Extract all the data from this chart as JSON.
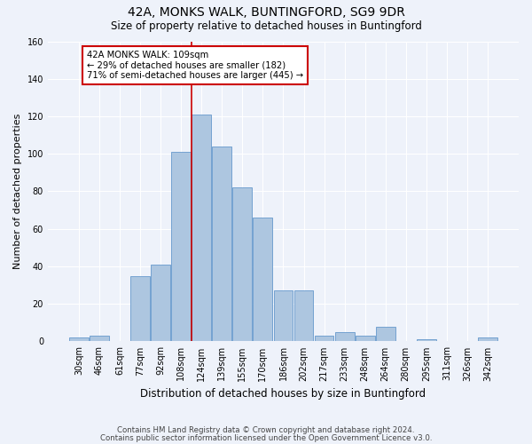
{
  "title1": "42A, MONKS WALK, BUNTINGFORD, SG9 9DR",
  "title2": "Size of property relative to detached houses in Buntingford",
  "xlabel": "Distribution of detached houses by size in Buntingford",
  "ylabel": "Number of detached properties",
  "categories": [
    "30sqm",
    "46sqm",
    "61sqm",
    "77sqm",
    "92sqm",
    "108sqm",
    "124sqm",
    "139sqm",
    "155sqm",
    "170sqm",
    "186sqm",
    "202sqm",
    "217sqm",
    "233sqm",
    "248sqm",
    "264sqm",
    "280sqm",
    "295sqm",
    "311sqm",
    "326sqm",
    "342sqm"
  ],
  "values": [
    2,
    3,
    0,
    35,
    41,
    101,
    121,
    104,
    82,
    66,
    27,
    27,
    3,
    5,
    3,
    8,
    0,
    1,
    0,
    0,
    2
  ],
  "bar_color": "#adc6e0",
  "bar_edge_color": "#6699cc",
  "vline_color": "#cc0000",
  "annotation_text": "42A MONKS WALK: 109sqm\n← 29% of detached houses are smaller (182)\n71% of semi-detached houses are larger (445) →",
  "annotation_box_color": "#ffffff",
  "annotation_box_edge": "#cc0000",
  "ylim": [
    0,
    160
  ],
  "yticks": [
    0,
    20,
    40,
    60,
    80,
    100,
    120,
    140,
    160
  ],
  "footer1": "Contains HM Land Registry data © Crown copyright and database right 2024.",
  "footer2": "Contains public sector information licensed under the Open Government Licence v3.0.",
  "bg_color": "#eef2fa",
  "grid_color": "#ffffff"
}
